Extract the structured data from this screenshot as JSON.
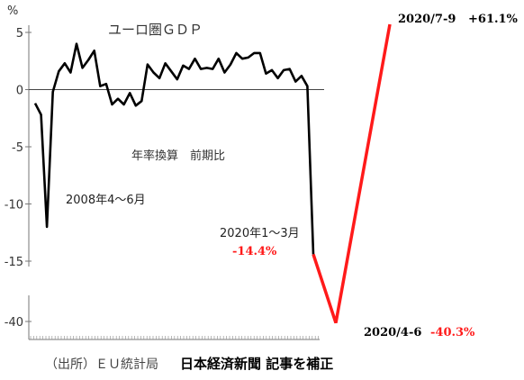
{
  "chart_data": {
    "type": "line",
    "title": "ユーロ圏ＧＤＰ",
    "subtitle": "年率換算　前期比",
    "y_unit": "%",
    "y_ticks": [
      5,
      0,
      -5,
      -10,
      -15,
      -40
    ],
    "ylim": [
      -42,
      7
    ],
    "y_axis_break": [
      -17,
      -38
    ],
    "grid": false,
    "series": [
      {
        "values": [
          -1.2,
          -2.2,
          -12.0,
          -0.2,
          1.6,
          2.3,
          1.5,
          4.0,
          1.9,
          2.6,
          3.4,
          0.3,
          0.5,
          -1.3,
          -0.8,
          -1.3,
          -0.3,
          -1.4,
          -1.0,
          2.2,
          1.5,
          1.0,
          2.3,
          1.6,
          0.9,
          2.1,
          1.8,
          2.7,
          1.8,
          1.9,
          1.8,
          2.7,
          1.5,
          2.2,
          3.2,
          2.7,
          2.8,
          3.2,
          3.2,
          1.4,
          1.7,
          1.0,
          1.7,
          1.8,
          0.7,
          1.2,
          0.3,
          -14.4
        ],
        "color": "#000000"
      },
      {
        "x": [
          "2020/1~3",
          "2020/4-6",
          "2020/7-9"
        ],
        "values": [
          -14.4,
          -40.3,
          61.1
        ],
        "color": "#ff1a1a"
      }
    ],
    "annotations": [
      {
        "id": "gfc",
        "text": "2008年4～6月"
      },
      {
        "id": "q1",
        "text": "2020年1～3月",
        "value_text": "-14.4%"
      },
      {
        "id": "q2",
        "date": "2020/4-6",
        "value_text": "-40.3%"
      },
      {
        "id": "q3",
        "date": "2020/7-9",
        "value_text": "+61.1%"
      }
    ]
  },
  "footer": {
    "source": "（出所）ＥＵ統計局",
    "credit": "日本経済新聞 記事を補正"
  },
  "colors": {
    "line": "#000000",
    "correction": "#ff1a1a",
    "axis": "#555555"
  }
}
